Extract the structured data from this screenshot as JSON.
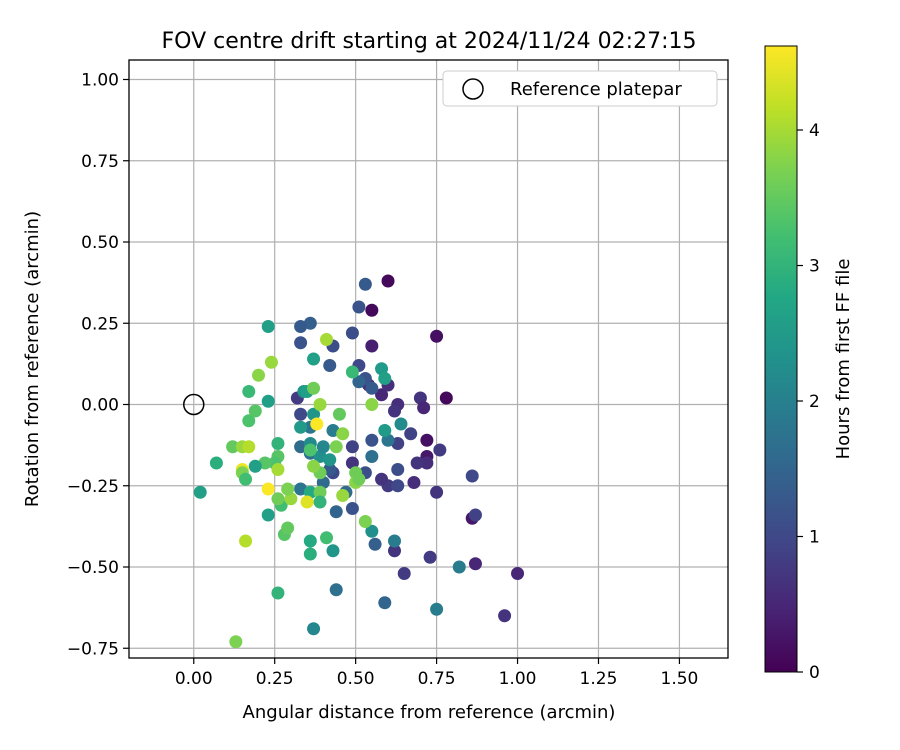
{
  "chart_data": {
    "type": "scatter",
    "title": "FOV centre drift starting at 2024/11/24 02:27:15",
    "xlabel": "Angular distance from reference (arcmin)",
    "ylabel": "Rotation from reference (arcmin)",
    "xlim": [
      -0.2,
      1.65
    ],
    "ylim": [
      -0.78,
      1.06
    ],
    "x_ticks": [
      0.0,
      0.25,
      0.5,
      0.75,
      1.0,
      1.25,
      1.5
    ],
    "x_tick_labels": [
      "0.00",
      "0.25",
      "0.50",
      "0.75",
      "1.00",
      "1.25",
      "1.50"
    ],
    "y_ticks": [
      -0.75,
      -0.5,
      -0.25,
      0.0,
      0.25,
      0.5,
      0.75,
      1.0
    ],
    "y_tick_labels": [
      "−0.75",
      "−0.50",
      "−0.25",
      "0.00",
      "0.25",
      "0.50",
      "0.75",
      "1.00"
    ],
    "grid": true,
    "legend": {
      "position": "top-right",
      "entries": [
        "Reference platepar"
      ]
    },
    "reference_point": {
      "x": 0.0,
      "y": 0.0,
      "label": "Reference platepar"
    },
    "colorbar": {
      "label": "Hours from first FF file",
      "range": [
        0,
        4.62
      ],
      "ticks": [
        0,
        1,
        2,
        3,
        4
      ],
      "tick_labels": [
        "0",
        "1",
        "2",
        "3",
        "4"
      ],
      "colormap": "viridis"
    },
    "points": [
      {
        "x": 0.6,
        "y": 0.38,
        "h": 0.1
      },
      {
        "x": 0.55,
        "y": 0.29,
        "h": 0.1
      },
      {
        "x": 0.75,
        "y": 0.21,
        "h": 0.2
      },
      {
        "x": 0.55,
        "y": 0.18,
        "h": 0.4
      },
      {
        "x": 0.78,
        "y": 0.02,
        "h": 0.1
      },
      {
        "x": 0.72,
        "y": -0.11,
        "h": 0.2
      },
      {
        "x": 0.72,
        "y": -0.16,
        "h": 0.3
      },
      {
        "x": 0.86,
        "y": -0.35,
        "h": 0.3
      },
      {
        "x": 0.87,
        "y": -0.49,
        "h": 0.5
      },
      {
        "x": 1.0,
        "y": -0.52,
        "h": 0.5
      },
      {
        "x": 0.96,
        "y": -0.65,
        "h": 0.7
      },
      {
        "x": 0.65,
        "y": -0.52,
        "h": 0.8
      },
      {
        "x": 0.62,
        "y": -0.45,
        "h": 0.7
      },
      {
        "x": 0.73,
        "y": -0.47,
        "h": 0.8
      },
      {
        "x": 0.75,
        "y": -0.27,
        "h": 0.7
      },
      {
        "x": 0.68,
        "y": -0.24,
        "h": 0.6
      },
      {
        "x": 0.63,
        "y": 0.0,
        "h": 0.6
      },
      {
        "x": 0.62,
        "y": -0.02,
        "h": 0.7
      },
      {
        "x": 0.7,
        "y": 0.02,
        "h": 0.7
      },
      {
        "x": 0.71,
        "y": -0.01,
        "h": 0.5
      },
      {
        "x": 0.58,
        "y": 0.03,
        "h": 0.5
      },
      {
        "x": 0.6,
        "y": 0.06,
        "h": 0.6
      },
      {
        "x": 0.54,
        "y": 0.06,
        "h": 0.6
      },
      {
        "x": 0.72,
        "y": -0.18,
        "h": 0.6
      },
      {
        "x": 0.69,
        "y": -0.18,
        "h": 0.7
      },
      {
        "x": 0.76,
        "y": -0.14,
        "h": 0.8
      },
      {
        "x": 0.67,
        "y": -0.09,
        "h": 0.9
      },
      {
        "x": 0.63,
        "y": -0.12,
        "h": 0.9
      },
      {
        "x": 0.6,
        "y": -0.25,
        "h": 0.8
      },
      {
        "x": 0.58,
        "y": -0.23,
        "h": 0.7
      },
      {
        "x": 0.63,
        "y": -0.25,
        "h": 1.0
      },
      {
        "x": 0.63,
        "y": -0.2,
        "h": 1.1
      },
      {
        "x": 0.86,
        "y": -0.22,
        "h": 1.0
      },
      {
        "x": 0.87,
        "y": -0.34,
        "h": 0.9
      },
      {
        "x": 0.59,
        "y": -0.61,
        "h": 1.5
      },
      {
        "x": 0.75,
        "y": -0.63,
        "h": 1.9
      },
      {
        "x": 0.82,
        "y": -0.5,
        "h": 1.9
      },
      {
        "x": 0.56,
        "y": -0.43,
        "h": 1.4
      },
      {
        "x": 0.62,
        "y": -0.42,
        "h": 1.9
      },
      {
        "x": 0.55,
        "y": -0.39,
        "h": 2.3
      },
      {
        "x": 0.49,
        "y": -0.32,
        "h": 1.2
      },
      {
        "x": 0.44,
        "y": -0.33,
        "h": 1.5
      },
      {
        "x": 0.47,
        "y": -0.27,
        "h": 1.6
      },
      {
        "x": 0.49,
        "y": -0.18,
        "h": 0.7
      },
      {
        "x": 0.49,
        "y": -0.13,
        "h": 0.9
      },
      {
        "x": 0.53,
        "y": -0.21,
        "h": 1.1
      },
      {
        "x": 0.43,
        "y": -0.21,
        "h": 1.0
      },
      {
        "x": 0.42,
        "y": -0.2,
        "h": 1.3
      },
      {
        "x": 0.4,
        "y": -0.24,
        "h": 1.6
      },
      {
        "x": 0.55,
        "y": -0.16,
        "h": 1.7
      },
      {
        "x": 0.55,
        "y": -0.11,
        "h": 1.2
      },
      {
        "x": 0.6,
        "y": -0.11,
        "h": 1.8
      },
      {
        "x": 0.64,
        "y": -0.06,
        "h": 2.2
      },
      {
        "x": 0.59,
        "y": -0.08,
        "h": 2.5
      },
      {
        "x": 0.53,
        "y": 0.37,
        "h": 1.3
      },
      {
        "x": 0.51,
        "y": 0.3,
        "h": 1.2
      },
      {
        "x": 0.49,
        "y": 0.22,
        "h": 1.1
      },
      {
        "x": 0.51,
        "y": 0.12,
        "h": 1.0
      },
      {
        "x": 0.53,
        "y": 0.08,
        "h": 1.2
      },
      {
        "x": 0.58,
        "y": 0.11,
        "h": 2.5
      },
      {
        "x": 0.59,
        "y": 0.08,
        "h": 2.6
      },
      {
        "x": 0.51,
        "y": 0.07,
        "h": 1.5
      },
      {
        "x": 0.55,
        "y": 0.05,
        "h": 1.3
      },
      {
        "x": 0.36,
        "y": 0.25,
        "h": 1.4
      },
      {
        "x": 0.33,
        "y": 0.24,
        "h": 1.3
      },
      {
        "x": 0.33,
        "y": 0.19,
        "h": 1.2
      },
      {
        "x": 0.43,
        "y": 0.18,
        "h": 1.1
      },
      {
        "x": 0.42,
        "y": 0.12,
        "h": 1.3
      },
      {
        "x": 0.37,
        "y": 0.14,
        "h": 2.6
      },
      {
        "x": 0.32,
        "y": 0.02,
        "h": 0.8
      },
      {
        "x": 0.33,
        "y": -0.03,
        "h": 1.0
      },
      {
        "x": 0.34,
        "y": 0.04,
        "h": 2.4
      },
      {
        "x": 0.35,
        "y": 0.04,
        "h": 2.6
      },
      {
        "x": 0.37,
        "y": -0.03,
        "h": 2.4
      },
      {
        "x": 0.36,
        "y": -0.07,
        "h": 1.8
      },
      {
        "x": 0.33,
        "y": -0.07,
        "h": 2.5
      },
      {
        "x": 0.33,
        "y": -0.13,
        "h": 1.6
      },
      {
        "x": 0.36,
        "y": -0.15,
        "h": 1.7
      },
      {
        "x": 0.36,
        "y": -0.12,
        "h": 2.2
      },
      {
        "x": 0.39,
        "y": -0.16,
        "h": 2.3
      },
      {
        "x": 0.43,
        "y": -0.08,
        "h": 1.9
      },
      {
        "x": 0.4,
        "y": -0.13,
        "h": 2.1
      },
      {
        "x": 0.42,
        "y": -0.17,
        "h": 2.4
      },
      {
        "x": 0.33,
        "y": -0.26,
        "h": 1.8
      },
      {
        "x": 0.36,
        "y": -0.27,
        "h": 2.8
      },
      {
        "x": 0.39,
        "y": -0.27,
        "h": 3.6
      },
      {
        "x": 0.36,
        "y": -0.42,
        "h": 2.8
      },
      {
        "x": 0.36,
        "y": -0.46,
        "h": 2.9
      },
      {
        "x": 0.41,
        "y": -0.41,
        "h": 3.2
      },
      {
        "x": 0.43,
        "y": -0.45,
        "h": 2.4
      },
      {
        "x": 0.37,
        "y": -0.69,
        "h": 2.1
      },
      {
        "x": 0.44,
        "y": -0.57,
        "h": 1.7
      },
      {
        "x": 0.26,
        "y": -0.58,
        "h": 3.0
      },
      {
        "x": 0.13,
        "y": -0.73,
        "h": 3.7
      },
      {
        "x": 0.16,
        "y": -0.42,
        "h": 4.1
      },
      {
        "x": 0.28,
        "y": -0.4,
        "h": 3.4
      },
      {
        "x": 0.29,
        "y": -0.38,
        "h": 3.5
      },
      {
        "x": 0.23,
        "y": -0.34,
        "h": 2.6
      },
      {
        "x": 0.27,
        "y": -0.31,
        "h": 3.2
      },
      {
        "x": 0.26,
        "y": -0.29,
        "h": 3.6
      },
      {
        "x": 0.3,
        "y": -0.29,
        "h": 3.9
      },
      {
        "x": 0.29,
        "y": -0.26,
        "h": 3.7
      },
      {
        "x": 0.23,
        "y": -0.26,
        "h": 4.6
      },
      {
        "x": 0.35,
        "y": -0.3,
        "h": 4.4
      },
      {
        "x": 0.39,
        "y": -0.3,
        "h": 3.0
      },
      {
        "x": 0.39,
        "y": -0.21,
        "h": 3.6
      },
      {
        "x": 0.37,
        "y": -0.19,
        "h": 3.8
      },
      {
        "x": 0.38,
        "y": -0.06,
        "h": 4.6
      },
      {
        "x": 0.39,
        "y": 0.0,
        "h": 3.9
      },
      {
        "x": 0.37,
        "y": 0.05,
        "h": 3.6
      },
      {
        "x": 0.41,
        "y": 0.2,
        "h": 4.0
      },
      {
        "x": 0.36,
        "y": -0.14,
        "h": 3.3
      },
      {
        "x": 0.45,
        "y": -0.03,
        "h": 3.5
      },
      {
        "x": 0.46,
        "y": -0.09,
        "h": 3.8
      },
      {
        "x": 0.44,
        "y": -0.13,
        "h": 3.7
      },
      {
        "x": 0.5,
        "y": -0.21,
        "h": 3.6
      },
      {
        "x": 0.5,
        "y": -0.24,
        "h": 3.8
      },
      {
        "x": 0.51,
        "y": -0.23,
        "h": 3.6
      },
      {
        "x": 0.46,
        "y": -0.28,
        "h": 3.9
      },
      {
        "x": 0.53,
        "y": -0.36,
        "h": 3.7
      },
      {
        "x": 0.49,
        "y": 0.1,
        "h": 3.1
      },
      {
        "x": 0.55,
        "y": 0.0,
        "h": 3.8
      },
      {
        "x": 0.26,
        "y": -0.12,
        "h": 3.0
      },
      {
        "x": 0.26,
        "y": -0.16,
        "h": 3.4
      },
      {
        "x": 0.25,
        "y": -0.18,
        "h": 3.3
      },
      {
        "x": 0.26,
        "y": -0.2,
        "h": 4.0
      },
      {
        "x": 0.22,
        "y": -0.18,
        "h": 3.4
      },
      {
        "x": 0.19,
        "y": -0.19,
        "h": 2.6
      },
      {
        "x": 0.15,
        "y": -0.2,
        "h": 4.5
      },
      {
        "x": 0.15,
        "y": -0.21,
        "h": 3.7
      },
      {
        "x": 0.16,
        "y": -0.23,
        "h": 3.2
      },
      {
        "x": 0.12,
        "y": -0.13,
        "h": 3.5
      },
      {
        "x": 0.15,
        "y": -0.13,
        "h": 3.9
      },
      {
        "x": 0.17,
        "y": -0.13,
        "h": 4.1
      },
      {
        "x": 0.07,
        "y": -0.18,
        "h": 2.9
      },
      {
        "x": 0.02,
        "y": -0.27,
        "h": 2.6
      },
      {
        "x": 0.17,
        "y": -0.05,
        "h": 3.3
      },
      {
        "x": 0.19,
        "y": -0.02,
        "h": 3.4
      },
      {
        "x": 0.23,
        "y": 0.01,
        "h": 2.6
      },
      {
        "x": 0.17,
        "y": 0.04,
        "h": 3.1
      },
      {
        "x": 0.2,
        "y": 0.09,
        "h": 3.8
      },
      {
        "x": 0.24,
        "y": 0.13,
        "h": 3.9
      },
      {
        "x": 0.23,
        "y": 0.24,
        "h": 2.6
      }
    ]
  }
}
